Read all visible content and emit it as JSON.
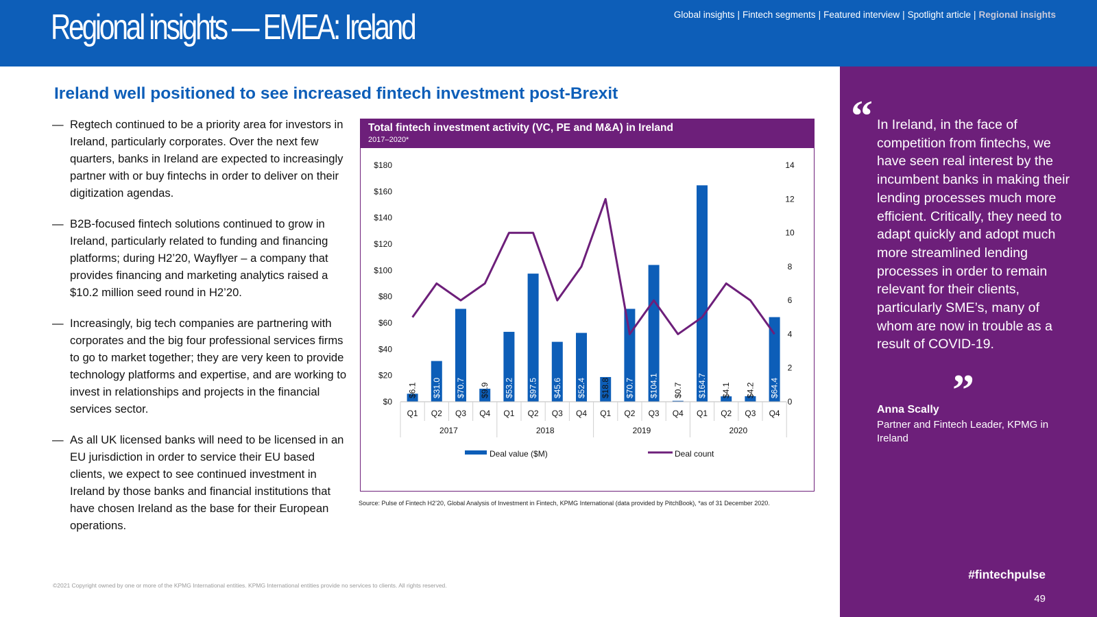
{
  "header": {
    "title": "Regional insights — EMEA: Ireland",
    "nav": [
      {
        "label": "Global insights",
        "active": false
      },
      {
        "label": "Fintech segments",
        "active": false
      },
      {
        "label": "Featured interview",
        "active": false
      },
      {
        "label": "Spotlight article",
        "active": false
      },
      {
        "label": "Regional insights",
        "active": true
      }
    ],
    "nav_separator": "|"
  },
  "subheading": "Ireland well positioned to see increased fintech investment post-Brexit",
  "bullet_marker": "—",
  "bullets": [
    "Regtech continued to be a priority area for investors in Ireland, particularly corporates. Over the next few quarters, banks in Ireland are expected to increasingly partner with or buy fintechs in order to deliver on their digitization agendas.",
    "B2B-focused fintech solutions continued to grow in Ireland, particularly related to funding and financing platforms; during H2’20, Wayflyer – a company that provides financing and marketing analytics raised a $10.2 million seed round in H2’20.",
    "Increasingly, big tech companies are partnering with corporates and the big four professional services firms to go to market together; they are very keen to provide technology platforms and expertise, and are working to invest in relationships and projects in the financial services sector.",
    "As all UK licensed banks will need to be licensed in an EU jurisdiction in order to service their EU based clients, we expect to see continued investment in Ireland by those banks and financial institutions that have chosen Ireland as the base for their European operations."
  ],
  "chart_data": {
    "type": "bar",
    "title": "Total fintech investment activity (VC, PE and M&A) in Ireland",
    "subtitle": "2017–2020*",
    "categories": [
      "Q1",
      "Q2",
      "Q3",
      "Q4",
      "Q1",
      "Q2",
      "Q3",
      "Q4",
      "Q1",
      "Q2",
      "Q3",
      "Q4",
      "Q1",
      "Q2",
      "Q3",
      "Q4"
    ],
    "years": [
      "2017",
      "2018",
      "2019",
      "2020"
    ],
    "series": [
      {
        "name": "Deal value ($M)",
        "type": "bar",
        "axis": "left",
        "color": "#0d5eb8",
        "values": [
          6.1,
          31.0,
          70.7,
          9.9,
          53.2,
          97.5,
          45.6,
          52.4,
          18.8,
          70.7,
          104.1,
          0.7,
          164.7,
          4.1,
          4.2,
          64.4
        ],
        "data_labels": [
          "$6.1",
          "$31.0",
          "$70.7",
          "$9.9",
          "$53.2",
          "$97.5",
          "$45.6",
          "$52.4",
          "$18.8",
          "$70.7",
          "$104.1",
          "$0.7",
          "$164.7",
          "$4.1",
          "$4.2",
          "$64.4"
        ]
      },
      {
        "name": "Deal count",
        "type": "line",
        "axis": "right",
        "color": "#6d1f7a",
        "values": [
          5,
          7,
          6,
          7,
          10,
          10,
          6,
          8,
          12,
          4,
          6,
          4,
          5,
          7,
          6,
          4
        ]
      }
    ],
    "y_left": {
      "min": 0,
      "max": 180,
      "ticks": [
        "$0",
        "$20",
        "$40",
        "$60",
        "$80",
        "$100",
        "$120",
        "$140",
        "$160",
        "$180"
      ]
    },
    "y_right": {
      "min": 0,
      "max": 14,
      "ticks": [
        "0",
        "2",
        "4",
        "6",
        "8",
        "10",
        "12",
        "14"
      ]
    },
    "grid": false,
    "legend_position": "bottom"
  },
  "source_note": "Source: Pulse of Fintech H2’20, Global Analysis of Investment in Fintech, KPMG International (data provided by PitchBook), *as of 31 December 2020.",
  "copyright": "©2021 Copyright owned by one or more of the KPMG International entities. KPMG International entities provide no services to clients. All rights reserved.",
  "quote": {
    "open_mark": "“",
    "text": "In Ireland, in the face of competition from fintechs, we have seen real interest by the incumbent banks in making their lending processes much more efficient. Critically, they need to adapt quickly and adopt much more streamlined lending processes in order to remain relevant for their clients, particularly SME’s, many of whom are now in trouble as a result of COVID-19.",
    "close_mark": "”",
    "author": "Anna Scally",
    "role": "Partner and Fintech Leader, KPMG in Ireland"
  },
  "hashtag": "#fintechpulse",
  "page_number": "49",
  "colors": {
    "brand_blue": "#0d5eb8",
    "brand_purple": "#6d1f7a"
  }
}
